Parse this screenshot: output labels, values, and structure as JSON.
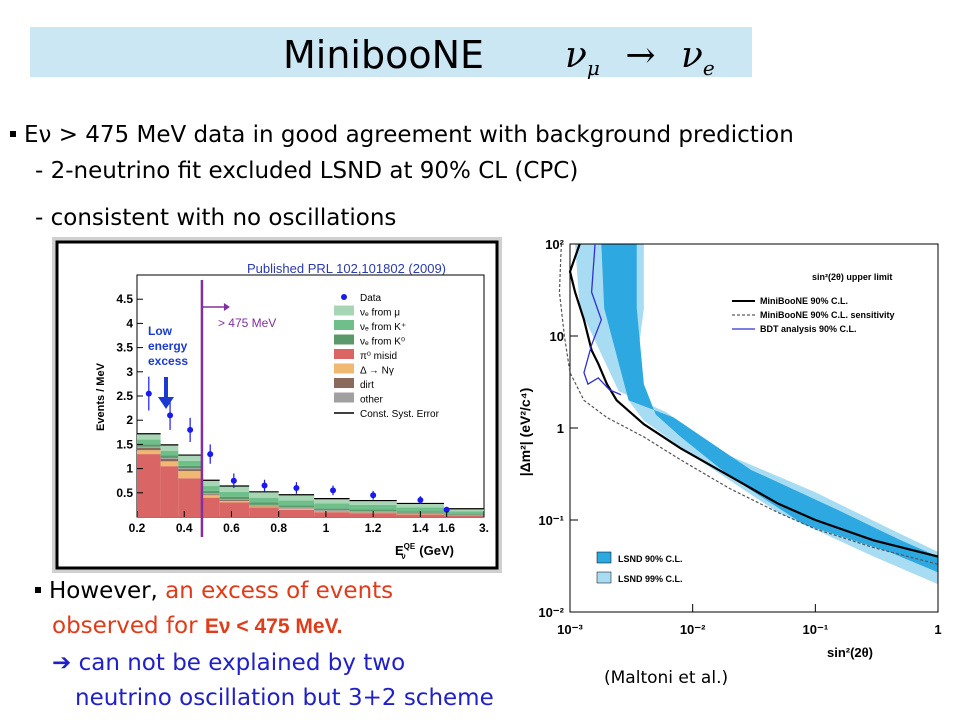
{
  "title": {
    "text": "MinibooNE",
    "formula_a": "ν",
    "sub_a": "μ",
    "arrow": "→",
    "formula_b": "ν",
    "sub_b": "e"
  },
  "bullets": {
    "line1": "Eν > 475 MeV data in good agreement with background  prediction",
    "line2": "-  2-neutrino fit excluded  LSND at 90% CL (CPC)",
    "line3": "- consistent with no oscillations",
    "line4_a": "However, ",
    "line4_b": "an excess of events",
    "line5_a": "observed for ",
    "line5_b": "Eν < 475 MeV.",
    "line6_arrow": "➔",
    "line6": " can not be  explained by two",
    "line7": "neutrino oscillation  but 3+2 scheme"
  },
  "citation": "(Maltoni et al.)",
  "left_plot": {
    "header": "Published PRL 102,101802 (2009)",
    "ylabel": "Events / MeV",
    "xlabel": "E",
    "xlabel_sup": "QE",
    "xlabel_sub": "ν",
    "xlabel_unit": "(GeV)",
    "annotation": [
      "Low",
      "energy",
      "excess"
    ],
    "cut_label": "> 475 MeV",
    "legend": [
      "Data",
      "νₑ from μ",
      "νₑ from K⁺",
      "νₑ from K⁰",
      "π⁰ misid",
      "Δ → Nγ",
      "dirt",
      "other",
      "Const. Syst. Error"
    ],
    "colors": {
      "nue_mu": "#a8d5b4",
      "nue_kp": "#6fbf8a",
      "nue_k0": "#5a9a6a",
      "pi0": "#d96565",
      "delta": "#f0b870",
      "dirt": "#8a6a5a",
      "other": "#a0a0a0",
      "data": "#1a1aee",
      "cut": "#8030a0"
    }
  },
  "chart_data": [
    {
      "type": "bar",
      "title": "Published PRL 102,101802 (2009)",
      "xlabel": "E_ν^QE (GeV)",
      "ylabel": "Events / MeV",
      "xlim": [
        0.2,
        3.0
      ],
      "ylim": [
        0,
        5
      ],
      "x_ticks": [
        "0.2",
        "0.4",
        "0.6",
        "0.8",
        "1",
        "1.2",
        "1.4",
        "1.6",
        "3."
      ],
      "y_ticks": [
        "0.5",
        "1",
        "1.5",
        "2",
        "2.5",
        "3",
        "3.5",
        "4",
        "4.5"
      ],
      "bin_edges": [
        0.2,
        0.3,
        0.375,
        0.475,
        0.55,
        0.675,
        0.8,
        0.95,
        1.1,
        1.3,
        1.5,
        3.0
      ],
      "series": [
        {
          "name": "π⁰ misid",
          "values": [
            1.3,
            1.05,
            0.8,
            0.4,
            0.3,
            0.2,
            0.15,
            0.1,
            0.08,
            0.05,
            0.03
          ]
        },
        {
          "name": "Δ → Nγ",
          "values": [
            0.08,
            0.1,
            0.15,
            0.05,
            0.03,
            0.02,
            0.02,
            0.01,
            0.01,
            0.01,
            0.005
          ]
        },
        {
          "name": "dirt",
          "values": [
            0.05,
            0.05,
            0.04,
            0.02,
            0.02,
            0.01,
            0.01,
            0.01,
            0.01,
            0.01,
            0.005
          ]
        },
        {
          "name": "other",
          "values": [
            0.02,
            0.02,
            0.02,
            0.02,
            0.02,
            0.02,
            0.02,
            0.02,
            0.02,
            0.02,
            0.01
          ]
        },
        {
          "name": "νₑ from K⁰",
          "values": [
            0.05,
            0.05,
            0.05,
            0.05,
            0.05,
            0.05,
            0.04,
            0.04,
            0.04,
            0.03,
            0.02
          ]
        },
        {
          "name": "νₑ from K⁺",
          "values": [
            0.1,
            0.1,
            0.1,
            0.1,
            0.1,
            0.1,
            0.1,
            0.1,
            0.09,
            0.08,
            0.05
          ]
        },
        {
          "name": "νₑ from μ",
          "values": [
            0.12,
            0.12,
            0.12,
            0.12,
            0.12,
            0.12,
            0.12,
            0.1,
            0.09,
            0.08,
            0.05
          ]
        }
      ],
      "data_points": {
        "name": "Data",
        "x": [
          0.25,
          0.34,
          0.425,
          0.51,
          0.61,
          0.74,
          0.875,
          1.03,
          1.2,
          1.4,
          1.6
        ],
        "y": [
          2.55,
          2.1,
          1.8,
          1.3,
          0.75,
          0.65,
          0.6,
          0.55,
          0.45,
          0.35,
          0.15
        ],
        "err": [
          0.35,
          0.3,
          0.25,
          0.2,
          0.15,
          0.12,
          0.12,
          0.1,
          0.09,
          0.08,
          0.06
        ]
      }
    },
    {
      "type": "line",
      "xlabel": "sin²(2θ)",
      "ylabel": "|Δm²| (eV²/c⁴)",
      "xscale": "log",
      "yscale": "log",
      "xlim": [
        0.001,
        1
      ],
      "ylim": [
        0.01,
        100
      ],
      "x_ticks": [
        "10⁻³",
        "10⁻²",
        "10⁻¹",
        "1"
      ],
      "y_ticks": [
        "10⁻²",
        "10⁻¹",
        "1",
        "10",
        "10²"
      ],
      "inset_label": "sin²(2θ) upper limit",
      "legend": [
        "MiniBooNE 90% C.L.",
        "MiniBooNE 90% C.L. sensitivity",
        "BDT analysis 90% C.L.",
        "LSND 90% C.L.",
        "LSND 99% C.L."
      ],
      "colors": {
        "lsnd90": "#2ea8e0",
        "lsnd99": "#a8dcf2",
        "mb90": "#000000",
        "bdt": "#3030d0"
      },
      "series": [
        {
          "name": "MiniBooNE 90% C.L.",
          "x": [
            0.0012,
            0.001,
            0.0011,
            0.0013,
            0.0015,
            0.0017,
            0.002,
            0.0024,
            0.004,
            0.008,
            0.02,
            0.05,
            0.1,
            0.3,
            1.0
          ],
          "y": [
            100,
            50,
            30,
            15,
            7,
            5,
            3,
            2,
            1.1,
            0.6,
            0.3,
            0.15,
            0.1,
            0.06,
            0.04
          ]
        },
        {
          "name": "MiniBooNE 90% C.L. sensitivity",
          "x": [
            0.00085,
            0.00082,
            0.0009,
            0.001,
            0.0013,
            0.002,
            0.004,
            0.008,
            0.02,
            0.05,
            0.1,
            0.3,
            1.0
          ],
          "y": [
            100,
            30,
            10,
            4,
            2,
            1.3,
            0.8,
            0.45,
            0.22,
            0.12,
            0.08,
            0.05,
            0.033
          ]
        },
        {
          "name": "BDT analysis 90% C.L.",
          "x": [
            0.0016,
            0.0015,
            0.0018,
            0.0015,
            0.0013,
            0.0014,
            0.0017,
            0.0021,
            0.0026
          ],
          "y": [
            100,
            30,
            15,
            8,
            4,
            3,
            3.5,
            2.6,
            2.3
          ]
        }
      ]
    }
  ]
}
